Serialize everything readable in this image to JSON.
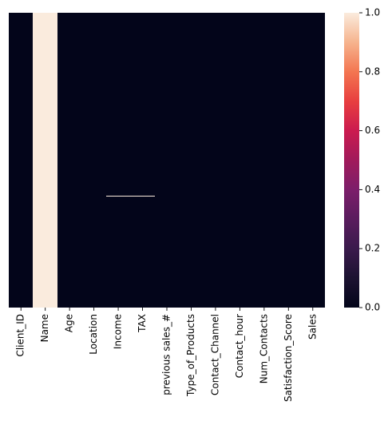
{
  "chart_data": {
    "type": "heatmap",
    "title": "",
    "xlabel": "",
    "ylabel": "",
    "columns": [
      "Client_ID",
      "Name",
      "Age",
      "Location",
      "Income",
      "TAX",
      "previous sales_#",
      "Type_of_Products",
      "Contact_Channel",
      "Contact_hour",
      "Num_Contacts",
      "Satisfaction_Score",
      "Sales"
    ],
    "column_values": [
      0,
      1,
      0,
      0,
      0,
      0,
      0,
      0,
      0,
      0,
      0,
      0,
      0
    ],
    "highlighted_cells": [
      {
        "columns": [
          "Income",
          "TAX"
        ],
        "row_fraction": 0.62,
        "value": 1
      }
    ],
    "y_ticks_visible": false,
    "colorbar": {
      "colormap": "rocket",
      "vmin": 0.0,
      "vmax": 1.0,
      "ticks": [
        "0.0",
        "0.2",
        "0.4",
        "0.6",
        "0.8",
        "1.0"
      ],
      "tick_values": [
        0.0,
        0.2,
        0.4,
        0.6,
        0.8,
        1.0
      ]
    },
    "colors": {
      "low": "#03051a",
      "high": "#faebdd"
    }
  }
}
